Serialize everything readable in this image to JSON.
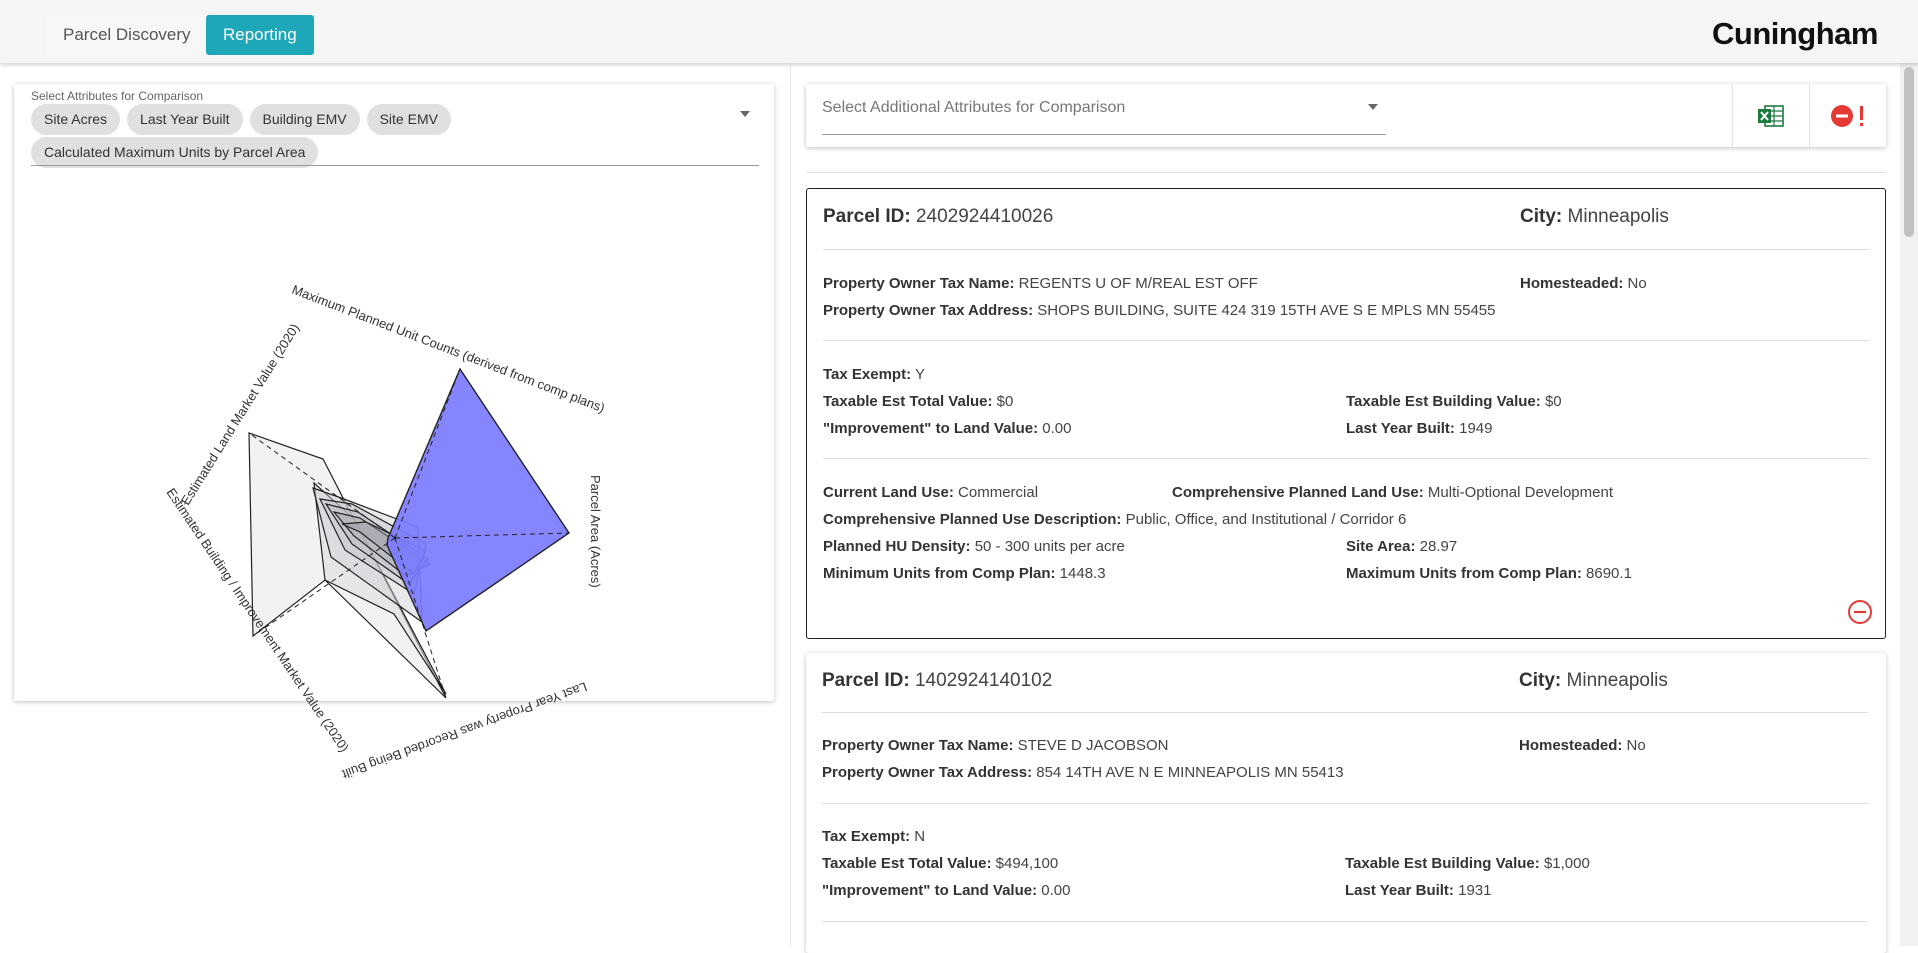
{
  "nav": {
    "tabs": [
      {
        "label": "Parcel Discovery"
      },
      {
        "label": "Reporting"
      }
    ],
    "logo": "Cuningham"
  },
  "comparison": {
    "label": "Select Attributes for Comparison",
    "chips": [
      "Site Acres",
      "Last Year Built",
      "Building EMV",
      "Site EMV",
      "Calculated Maximum Units by Parcel Area"
    ]
  },
  "radar": {
    "axes": [
      "Maximum Planned Unit Counts (derived from comp plans)",
      "Parcel Area (Acres)",
      "Last Year Property was Recorded Being Built",
      "Estimated Building / Improvement Market Value (2020)",
      "Estimated Land Market Value (2020)"
    ],
    "highlight_color": "#7b7bff"
  },
  "toolbar": {
    "additional_placeholder": "Select Additional Attributes for Comparison",
    "excel_icon": "excel-icon",
    "clear_icon": "clear-all-icon"
  },
  "parcels": [
    {
      "parcel_id_label": "Parcel ID:",
      "parcel_id": "2402924410026",
      "city_label": "City:",
      "city": "Minneapolis",
      "owner_name_label": "Property Owner Tax Name:",
      "owner_name": "REGENTS U OF M/REAL EST OFF",
      "homesteaded_label": "Homesteaded:",
      "homesteaded": "No",
      "owner_address_label": "Property Owner Tax Address:",
      "owner_address": "SHOPS BUILDING, SUITE 424 319 15TH AVE S E MPLS MN 55455",
      "tax_exempt_label": "Tax Exempt:",
      "tax_exempt": "Y",
      "total_value_label": "Taxable Est Total Value:",
      "total_value": "$0",
      "building_value_label": "Taxable Est Building Value:",
      "building_value": "$0",
      "improvement_label": "\"Improvement\" to Land Value:",
      "improvement": "0.00",
      "last_year_label": "Last Year Built:",
      "last_year": "1949",
      "land_use_label": "Current Land Use:",
      "land_use": "Commercial",
      "comp_land_use_label": "Comprehensive Planned Land Use:",
      "comp_land_use": "Multi-Optional Development",
      "comp_desc_label": "Comprehensive Planned Use Description:",
      "comp_desc": "Public, Office, and Institutional / Corridor 6",
      "density_label": "Planned HU Density:",
      "density": "50 - 300 units per acre",
      "site_area_label": "Site Area:",
      "site_area": "28.97",
      "min_units_label": "Minimum Units from Comp Plan:",
      "min_units": "1448.3",
      "max_units_label": "Maximum Units from Comp Plan:",
      "max_units": "8690.1"
    },
    {
      "parcel_id_label": "Parcel ID:",
      "parcel_id": "1402924140102",
      "city_label": "City:",
      "city": "Minneapolis",
      "owner_name_label": "Property Owner Tax Name:",
      "owner_name": "STEVE D JACOBSON",
      "homesteaded_label": "Homesteaded:",
      "homesteaded": "No",
      "owner_address_label": "Property Owner Tax Address:",
      "owner_address": "854 14TH AVE N E MINNEAPOLIS MN 55413",
      "tax_exempt_label": "Tax Exempt:",
      "tax_exempt": "N",
      "total_value_label": "Taxable Est Total Value:",
      "total_value": "$494,100",
      "building_value_label": "Taxable Est Building Value:",
      "building_value": "$1,000",
      "improvement_label": "\"Improvement\" to Land Value:",
      "improvement": "0.00",
      "last_year_label": "Last Year Built:",
      "last_year": "1931"
    }
  ]
}
